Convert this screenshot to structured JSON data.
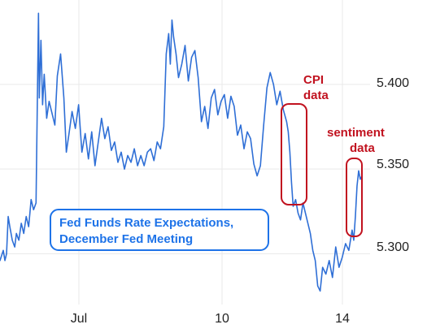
{
  "chart_data": {
    "type": "line",
    "title_lines": [
      "Fed Funds Rate Expectations,",
      "December Fed Meeting"
    ],
    "x_ticks": [
      "Jul",
      "10",
      "14"
    ],
    "y_ticks": [
      "5.400",
      "5.350",
      "5.300"
    ],
    "y_tick_values": [
      5.4,
      5.35,
      5.3
    ],
    "ylim": [
      5.27,
      5.446
    ],
    "grid": true,
    "colors": {
      "line": "#2f6fd6",
      "annotation": "#c1121f",
      "title_text": "#1e73e8",
      "title_border": "#1e73e8",
      "grid": "#e9e9e9",
      "tick_text": "#222222"
    },
    "annotations": [
      {
        "lines": [
          "CPI",
          "data"
        ]
      },
      {
        "lines": [
          "sentiment",
          "data"
        ]
      }
    ],
    "series": [
      {
        "points": [
          [
            0,
            5.296
          ],
          [
            4,
            5.302
          ],
          [
            6,
            5.296
          ],
          [
            8,
            5.3
          ],
          [
            10,
            5.322
          ],
          [
            12,
            5.316
          ],
          [
            15,
            5.308
          ],
          [
            18,
            5.304
          ],
          [
            20,
            5.312
          ],
          [
            23,
            5.308
          ],
          [
            26,
            5.318
          ],
          [
            29,
            5.312
          ],
          [
            32,
            5.322
          ],
          [
            35,
            5.316
          ],
          [
            38,
            5.332
          ],
          [
            41,
            5.326
          ],
          [
            44,
            5.33
          ],
          [
            46,
            5.405
          ],
          [
            47,
            5.442
          ],
          [
            48,
            5.392
          ],
          [
            50,
            5.426
          ],
          [
            52,
            5.388
          ],
          [
            54,
            5.406
          ],
          [
            57,
            5.38
          ],
          [
            60,
            5.39
          ],
          [
            64,
            5.382
          ],
          [
            67,
            5.376
          ],
          [
            70,
            5.405
          ],
          [
            74,
            5.418
          ],
          [
            78,
            5.392
          ],
          [
            81,
            5.36
          ],
          [
            84,
            5.37
          ],
          [
            88,
            5.384
          ],
          [
            92,
            5.374
          ],
          [
            96,
            5.388
          ],
          [
            100,
            5.36
          ],
          [
            104,
            5.371
          ],
          [
            108,
            5.356
          ],
          [
            112,
            5.372
          ],
          [
            116,
            5.352
          ],
          [
            120,
            5.366
          ],
          [
            124,
            5.38
          ],
          [
            128,
            5.368
          ],
          [
            132,
            5.375
          ],
          [
            136,
            5.361
          ],
          [
            140,
            5.366
          ],
          [
            144,
            5.354
          ],
          [
            148,
            5.36
          ],
          [
            152,
            5.35
          ],
          [
            156,
            5.358
          ],
          [
            160,
            5.354
          ],
          [
            164,
            5.362
          ],
          [
            168,
            5.352
          ],
          [
            172,
            5.358
          ],
          [
            176,
            5.352
          ],
          [
            180,
            5.36
          ],
          [
            184,
            5.362
          ],
          [
            188,
            5.355
          ],
          [
            192,
            5.366
          ],
          [
            196,
            5.362
          ],
          [
            200,
            5.375
          ],
          [
            203,
            5.418
          ],
          [
            206,
            5.43
          ],
          [
            208,
            5.412
          ],
          [
            210,
            5.438
          ],
          [
            212,
            5.428
          ],
          [
            215,
            5.418
          ],
          [
            218,
            5.404
          ],
          [
            222,
            5.412
          ],
          [
            226,
            5.423
          ],
          [
            230,
            5.402
          ],
          [
            234,
            5.416
          ],
          [
            238,
            5.42
          ],
          [
            242,
            5.404
          ],
          [
            246,
            5.378
          ],
          [
            250,
            5.387
          ],
          [
            254,
            5.374
          ],
          [
            258,
            5.392
          ],
          [
            262,
            5.397
          ],
          [
            266,
            5.382
          ],
          [
            270,
            5.39
          ],
          [
            274,
            5.394
          ],
          [
            278,
            5.38
          ],
          [
            282,
            5.393
          ],
          [
            286,
            5.387
          ],
          [
            290,
            5.37
          ],
          [
            294,
            5.376
          ],
          [
            298,
            5.362
          ],
          [
            302,
            5.372
          ],
          [
            306,
            5.368
          ],
          [
            310,
            5.353
          ],
          [
            314,
            5.346
          ],
          [
            318,
            5.352
          ],
          [
            322,
            5.376
          ],
          [
            326,
            5.398
          ],
          [
            330,
            5.407
          ],
          [
            334,
            5.4
          ],
          [
            338,
            5.388
          ],
          [
            342,
            5.396
          ],
          [
            346,
            5.385
          ],
          [
            350,
            5.378
          ],
          [
            352,
            5.372
          ],
          [
            354,
            5.36
          ],
          [
            356,
            5.342
          ],
          [
            358,
            5.328
          ],
          [
            361,
            5.332
          ],
          [
            364,
            5.324
          ],
          [
            367,
            5.32
          ],
          [
            370,
            5.33
          ],
          [
            373,
            5.324
          ],
          [
            376,
            5.318
          ],
          [
            379,
            5.312
          ],
          [
            382,
            5.302
          ],
          [
            385,
            5.296
          ],
          [
            388,
            5.281
          ],
          [
            391,
            5.278
          ],
          [
            394,
            5.292
          ],
          [
            398,
            5.288
          ],
          [
            402,
            5.296
          ],
          [
            406,
            5.286
          ],
          [
            410,
            5.304
          ],
          [
            414,
            5.292
          ],
          [
            418,
            5.298
          ],
          [
            422,
            5.306
          ],
          [
            426,
            5.302
          ],
          [
            430,
            5.314
          ],
          [
            432,
            5.308
          ],
          [
            434,
            5.322
          ],
          [
            436,
            5.34
          ],
          [
            438,
            5.349
          ],
          [
            440,
            5.344
          ],
          [
            442,
            5.346
          ]
        ]
      }
    ]
  }
}
